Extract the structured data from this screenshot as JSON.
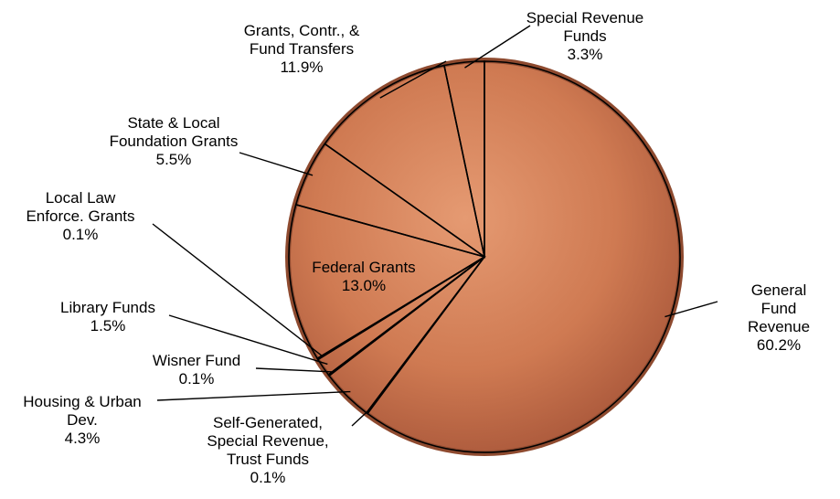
{
  "chart_data": {
    "type": "pie",
    "categories": [
      "General Fund\nRevenue",
      "Self-Generated,\nSpecial Revenue,\nTrust Funds",
      "Housing & Urban\nDev.",
      "Wisner Fund",
      "Library Funds",
      "Local Law\nEnforce. Grants",
      "Federal Grants",
      "State & Local\nFoundation Grants",
      "Grants, Contr., &\nFund Transfers",
      "Special Revenue\nFunds"
    ],
    "values": [
      60.2,
      0.1,
      4.3,
      0.1,
      1.5,
      0.1,
      13.0,
      5.5,
      11.9,
      3.3
    ],
    "value_labels": [
      "60.2%",
      "0.1%",
      "4.3%",
      "0.1%",
      "1.5%",
      "0.1%",
      "13.0%",
      "5.5%",
      "11.9%",
      "3.3%"
    ],
    "line_color": "#000000"
  }
}
